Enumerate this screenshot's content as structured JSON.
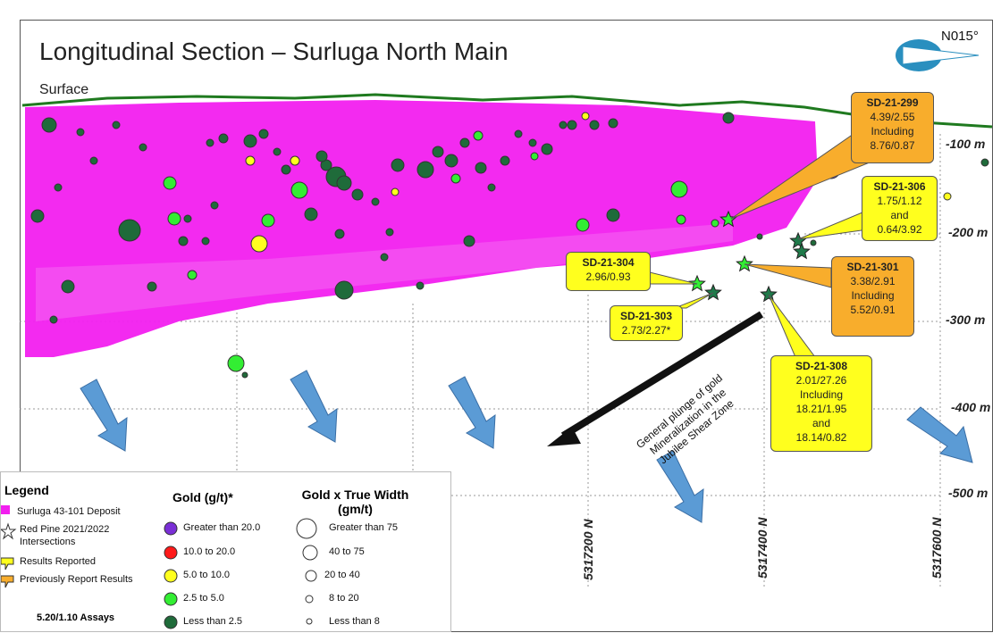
{
  "map": {
    "title": "Longitudinal Section – Surluga North Main",
    "surface_label": "Surface",
    "north_label": "N015°",
    "depth_labels": [
      "-100 m",
      "-200 m",
      "-300 m",
      "-400 m",
      "-500 m"
    ],
    "northings": [
      "5317200 N",
      "5317400 N",
      "5317600 N"
    ],
    "plunge_text": [
      "General plunge of gold",
      "Mineralization in the",
      "Jubilee Shear Zone"
    ]
  },
  "callouts": [
    {
      "hole": "SD-21-299",
      "lines": [
        "4.39/2.55",
        "Including",
        "8.76/0.87"
      ],
      "color": "orange"
    },
    {
      "hole": "SD-21-306",
      "lines": [
        "1.75/1.12",
        "and",
        "0.64/3.92"
      ],
      "color": "yellow"
    },
    {
      "hole": "SD-21-304",
      "lines": [
        "2.96/0.93"
      ],
      "color": "yellow"
    },
    {
      "hole": "SD-21-301",
      "lines": [
        "3.38/2.91",
        "Including",
        "5.52/0.91"
      ],
      "color": "orange"
    },
    {
      "hole": "SD-21-303",
      "lines": [
        "2.73/2.27*"
      ],
      "color": "yellow"
    },
    {
      "hole": "SD-21-308",
      "lines": [
        "2.01/27.26",
        "Including",
        "18.21/1.95",
        "and",
        "18.14/0.82"
      ],
      "color": "yellow"
    }
  ],
  "legend": {
    "title": "Legend",
    "items": [
      "Surluga 43-101 Deposit",
      "Red Pine 2021/2022",
      "Intersections",
      "Results Reported",
      "Previously Report Results"
    ],
    "gold_title": "Gold (g/t)*",
    "gold_items": [
      "Greater than 20.0",
      "10.0 to 20.0",
      "5.0 to 10.0",
      "2.5 to 5.0",
      "Less than 2.5"
    ],
    "width_title": "Gold x True Width",
    "width_subtitle": "(gm/t)",
    "width_items": [
      "Greater than 75",
      "40 to 75",
      "20 to 40",
      "8 to 20",
      "Less than 8"
    ],
    "assays_note": "5.20/1.10 Assays"
  },
  "colors": {
    "deposit": "#f21fef",
    "surface_line": "#1f7a1f",
    "violet": "#7a2fd6",
    "red": "#ff1a1a",
    "yellow": "#ffff1e",
    "lightgreen": "#33ee33",
    "darkgreen": "#1f6b3a",
    "arrow_blue": "#5b9bd5"
  }
}
